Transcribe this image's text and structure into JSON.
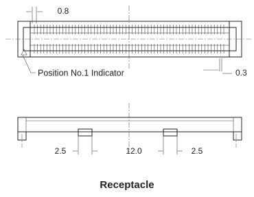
{
  "top_view": {
    "pitch": "0.8",
    "indicator": "Position No.1 Indicator",
    "offset": "0.3"
  },
  "side_view": {
    "left_offset": "2.5",
    "center_span": "12.0",
    "right_offset": "2.5"
  },
  "caption": "Receptacle"
}
